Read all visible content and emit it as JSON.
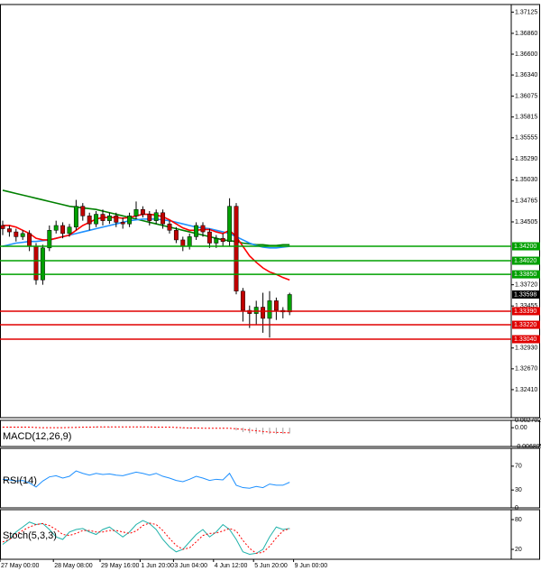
{
  "chart_data": [
    {
      "type": "candlestick",
      "ylim": [
        1.3206,
        1.3722
      ],
      "yticks": [
        1.37125,
        {
          "value": 1.3686,
          "label": "1.36860"
        },
        {
          "value": 1.366,
          "label": "1.36600"
        },
        {
          "value": 1.3634,
          "label": "1.36340"
        },
        1.36075,
        1.35815,
        1.35555,
        {
          "value": 1.3529,
          "label": "1.35290"
        },
        {
          "value": 1.3503,
          "label": "1.35030"
        },
        1.34765,
        1.34505,
        {
          "value": 1.3372,
          "label": "1.33720"
        },
        1.33455,
        {
          "value": 1.3293,
          "label": "1.32930"
        },
        {
          "value": 1.3267,
          "label": "1.32670"
        },
        {
          "value": 1.3241,
          "label": "1.32410"
        }
      ],
      "xticks": [
        {
          "value": 0,
          "label": "27 May 00:00"
        },
        {
          "value": 8,
          "label": "28 May 08:00"
        },
        {
          "value": 15,
          "label": "29 May 16:00"
        },
        {
          "value": 21,
          "label": "1 Jun 20:00"
        },
        {
          "value": 26,
          "label": "3 Jun 04:00"
        },
        {
          "value": 32,
          "label": "4 Jun 12:00"
        },
        {
          "value": 38,
          "label": "5 Jun 20:00"
        },
        {
          "value": 44,
          "label": "9 Jun 00:00"
        }
      ],
      "up_color": "#00a000",
      "down_color": "#c00000",
      "open": [
        1.3446,
        1.3442,
        1.3438,
        1.3432,
        1.3436,
        1.342,
        1.3378,
        1.3418,
        1.344,
        1.3446,
        1.3436,
        1.3444,
        1.347,
        1.3458,
        1.3448,
        1.346,
        1.3452,
        1.3458,
        1.345,
        1.3448,
        1.3458,
        1.3466,
        1.346,
        1.3452,
        1.3462,
        1.3448,
        1.344,
        1.3428,
        1.342,
        1.3432,
        1.3446,
        1.3438,
        1.3424,
        1.343,
        1.3426,
        1.347,
        1.3364,
        1.334,
        1.3336,
        1.3344,
        1.333,
        1.3352,
        1.334,
        1.3338
      ],
      "high": [
        1.3452,
        1.3446,
        1.3442,
        1.344,
        1.344,
        1.3424,
        1.3422,
        1.3446,
        1.3452,
        1.345,
        1.3448,
        1.3478,
        1.3474,
        1.3462,
        1.3464,
        1.3466,
        1.3462,
        1.3462,
        1.3456,
        1.3462,
        1.3476,
        1.347,
        1.3464,
        1.3466,
        1.3466,
        1.3452,
        1.3444,
        1.3432,
        1.3436,
        1.345,
        1.345,
        1.3442,
        1.3434,
        1.3436,
        1.348,
        1.3474,
        1.3368,
        1.3346,
        1.3352,
        1.3362,
        1.3364,
        1.3356,
        1.3344,
        1.3362
      ],
      "low": [
        1.3434,
        1.3432,
        1.3426,
        1.3428,
        1.3414,
        1.3372,
        1.3372,
        1.3414,
        1.3436,
        1.343,
        1.3432,
        1.344,
        1.3452,
        1.344,
        1.3444,
        1.3446,
        1.3448,
        1.3444,
        1.3442,
        1.3444,
        1.3454,
        1.3456,
        1.3446,
        1.3448,
        1.3442,
        1.3436,
        1.3424,
        1.3414,
        1.3416,
        1.3428,
        1.3432,
        1.3418,
        1.3418,
        1.342,
        1.342,
        1.336,
        1.3326,
        1.3318,
        1.3322,
        1.3312,
        1.3306,
        1.3328,
        1.333,
        1.3334
      ],
      "close": [
        1.3442,
        1.3438,
        1.3432,
        1.3436,
        1.342,
        1.3378,
        1.3418,
        1.344,
        1.3446,
        1.3436,
        1.3444,
        1.347,
        1.3458,
        1.3448,
        1.346,
        1.3452,
        1.3458,
        1.345,
        1.3448,
        1.3458,
        1.3466,
        1.346,
        1.3452,
        1.3462,
        1.3448,
        1.344,
        1.3428,
        1.342,
        1.3432,
        1.3446,
        1.3438,
        1.3424,
        1.343,
        1.3426,
        1.347,
        1.3364,
        1.334,
        1.3336,
        1.3344,
        1.333,
        1.3352,
        1.334,
        1.3338,
        1.33598
      ],
      "series": [
        {
          "color": "#008000",
          "values": [
            1.349,
            1.3488,
            1.3486,
            1.3484,
            1.3482,
            1.348,
            1.3478,
            1.3476,
            1.3474,
            1.3472,
            1.347,
            1.3469,
            1.3468,
            1.3467,
            1.3466,
            1.3464,
            1.3462,
            1.346,
            1.3458,
            1.3456,
            1.3454,
            1.3452,
            1.345,
            1.3448,
            1.3446,
            1.3444,
            1.3442,
            1.344,
            1.3438,
            1.3436,
            1.3434,
            1.3432,
            1.343,
            1.3428,
            1.3427,
            1.3426,
            1.3424,
            1.3423,
            1.3422,
            1.3422,
            1.3421,
            1.3421,
            1.3422,
            1.3422
          ]
        },
        {
          "color": "#1e90ff",
          "values": [
            1.342,
            1.3422,
            1.3424,
            1.3425,
            1.3426,
            1.3426,
            1.3427,
            1.3428,
            1.343,
            1.3432,
            1.3434,
            1.3436,
            1.3438,
            1.344,
            1.3442,
            1.3444,
            1.3446,
            1.3448,
            1.345,
            1.3452,
            1.3453,
            1.3454,
            1.3454,
            1.3454,
            1.3453,
            1.3452,
            1.345,
            1.3448,
            1.3446,
            1.3444,
            1.3443,
            1.3442,
            1.344,
            1.3438,
            1.3436,
            1.3432,
            1.3428,
            1.3424,
            1.3421,
            1.3419,
            1.3418,
            1.3418,
            1.3419,
            1.342
          ]
        },
        {
          "color": "#ff0000",
          "values": [
            1.3446,
            1.3446,
            1.3444,
            1.344,
            1.3436,
            1.343,
            1.3428,
            1.3428,
            1.343,
            1.3432,
            1.3434,
            1.344,
            1.3446,
            1.345,
            1.3454,
            1.3456,
            1.3456,
            1.3456,
            1.3455,
            1.3456,
            1.3458,
            1.346,
            1.346,
            1.3459,
            1.3457,
            1.3453,
            1.3448,
            1.3443,
            1.344,
            1.344,
            1.3441,
            1.3441,
            1.3438,
            1.3436,
            1.344,
            1.3432,
            1.342,
            1.3408,
            1.34,
            1.3393,
            1.3388,
            1.3385,
            1.3381,
            1.3378
          ]
        }
      ],
      "levels": [
        {
          "value": 1.342,
          "label": "1.34200",
          "color": "#00a000"
        },
        {
          "value": 1.3402,
          "label": "1.34020",
          "color": "#00a000"
        },
        {
          "value": 1.3385,
          "label": "1.33850",
          "color": "#00a000"
        },
        {
          "value": 1.3339,
          "label": "1.33390",
          "color": "#e00000"
        },
        {
          "value": 1.3322,
          "label": "1.33220",
          "color": "#e00000"
        },
        {
          "value": 1.3304,
          "label": "1.33040",
          "color": "#e00000"
        }
      ],
      "last_price": 1.33598
    },
    {
      "type": "macd",
      "title": "MACD(12,26,9)",
      "ylim": [
        -0.006895,
        0.002702
      ],
      "yticks": [
        0.002702,
        {
          "value": 0,
          "label": "0.00"
        },
        -0.006895
      ],
      "series": [
        {
          "color": "#a0a0a0",
          "values": [
            0.0003,
            0.0003,
            0.0002,
            0.0002,
            0.0001,
            -0.0002,
            -0.0002,
            0,
            0.0001,
            0.0001,
            0.0002,
            0.0004,
            0.0004,
            0.0004,
            0.0004,
            0.0003,
            0.0003,
            0.0003,
            0.0002,
            0.0002,
            0.0003,
            0.0003,
            0.0002,
            0.0002,
            0.0001,
            0,
            -0.0002,
            -0.0003,
            -0.0003,
            -0.0002,
            -0.0002,
            -0.0003,
            -0.0003,
            -0.0003,
            0,
            -0.001,
            -0.0016,
            -0.002,
            -0.0022,
            -0.0024,
            -0.0023,
            -0.0023,
            -0.0023,
            -0.0021
          ]
        },
        {
          "color": "#ff0000",
          "values": [
            0.0002,
            0.0002,
            0.0002,
            0.0002,
            0.0002,
            0.0001,
            0,
            0,
            0,
            0,
            0.0001,
            0.0001,
            0.0002,
            0.0002,
            0.0003,
            0.0003,
            0.0003,
            0.0003,
            0.0003,
            0.0003,
            0.0003,
            0.0003,
            0.0003,
            0.0002,
            0.0002,
            0.0002,
            0.0001,
            0,
            -0.0001,
            -0.0001,
            -0.0002,
            -0.0002,
            -0.0002,
            -0.0002,
            -0.0002,
            -0.0004,
            -0.0006,
            -0.0009,
            -0.0011,
            -0.0014,
            -0.0016,
            -0.0017,
            -0.0018,
            -0.0019
          ]
        }
      ]
    },
    {
      "type": "rsi",
      "title": "RSI(14)",
      "ylim": [
        0,
        100
      ],
      "yticks": [
        70,
        30,
        0
      ],
      "series": [
        {
          "color": "#1e90ff",
          "values": [
            48,
            47,
            45,
            46,
            42,
            35,
            45,
            52,
            54,
            50,
            53,
            62,
            58,
            55,
            58,
            56,
            57,
            55,
            54,
            57,
            60,
            58,
            55,
            58,
            53,
            50,
            46,
            44,
            48,
            53,
            50,
            46,
            48,
            47,
            58,
            38,
            34,
            33,
            36,
            34,
            40,
            38,
            38,
            43
          ]
        }
      ]
    },
    {
      "type": "stoch",
      "title": "Stoch(5,3,3)",
      "ylim": [
        0,
        100
      ],
      "yticks": [
        80,
        20
      ],
      "series": [
        {
          "color": "#20b2aa",
          "values": [
            30,
            40,
            55,
            65,
            75,
            70,
            72,
            60,
            45,
            40,
            55,
            60,
            62,
            55,
            50,
            60,
            65,
            55,
            45,
            55,
            70,
            78,
            72,
            60,
            40,
            25,
            15,
            20,
            35,
            50,
            60,
            45,
            55,
            70,
            60,
            40,
            15,
            10,
            12,
            20,
            45,
            65,
            60,
            62
          ]
        },
        {
          "color": "#ff0000",
          "values": [
            35,
            40,
            50,
            58,
            65,
            70,
            72,
            68,
            60,
            50,
            48,
            52,
            58,
            58,
            55,
            55,
            58,
            58,
            55,
            52,
            57,
            68,
            73,
            70,
            58,
            42,
            28,
            20,
            23,
            35,
            48,
            52,
            53,
            57,
            62,
            57,
            38,
            22,
            12,
            14,
            26,
            43,
            57,
            62
          ]
        }
      ]
    }
  ]
}
